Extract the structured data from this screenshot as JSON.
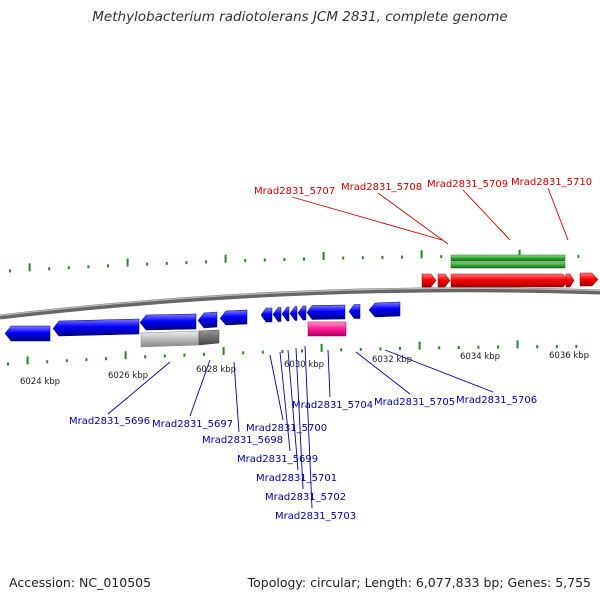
{
  "title": "Methylobacterium radiotolerans JCM 2831, complete genome",
  "footer": {
    "accession": "Accession: NC_010505",
    "topology": "Topology: circular; Length: 6,077,833 bp; Genes: 5,755"
  },
  "colors": {
    "forward_cds": "#ff0000",
    "reverse_cds": "#0000ff",
    "forward_rna": "#33aa33",
    "reverse_rna": "#ff1493",
    "pseudo": "#bbbbbb",
    "backbone": "#888888",
    "tick": "#228822",
    "forward_label": "#cc0000",
    "reverse_label": "#0000aa"
  },
  "scale_labels": [
    "6024 kbp",
    "6026 kbp",
    "6028 kbp",
    "6030 kbp",
    "6032 kbp",
    "6034 kbp",
    "6036 kbp"
  ],
  "forward_labels": [
    "Mrad2831_5707",
    "Mrad2831_5708",
    "Mrad2831_5709",
    "Mrad2831_5710"
  ],
  "reverse_labels": [
    "Mrad2831_5696",
    "Mrad2831_5697",
    "Mrad2831_5698",
    "Mrad2831_5699",
    "Mrad2831_5700",
    "Mrad2831_5701",
    "Mrad2831_5702",
    "Mrad2831_5703",
    "Mrad2831_5704",
    "Mrad2831_5705",
    "Mrad2831_5706"
  ]
}
